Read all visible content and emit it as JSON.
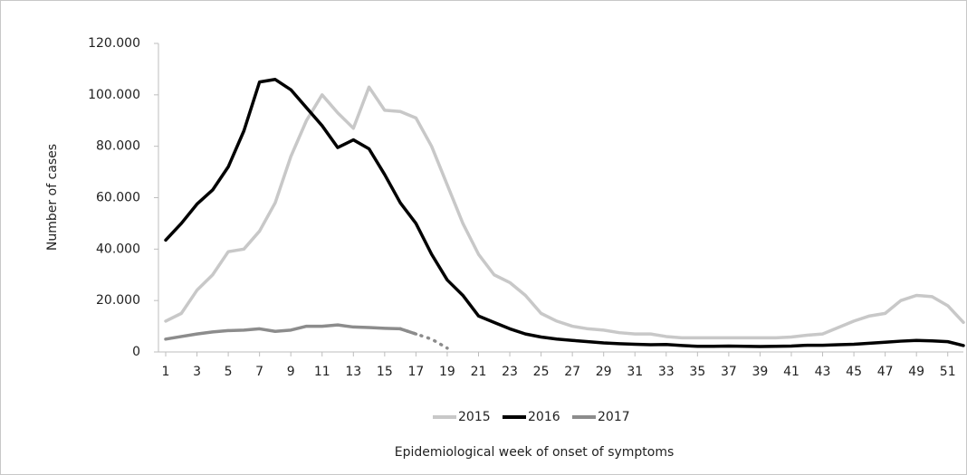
{
  "chart_data": {
    "type": "line",
    "y_label": "Number of cases",
    "x_label": "Epidemiological week of onset of symptoms",
    "x": [
      1,
      2,
      3,
      4,
      5,
      6,
      7,
      8,
      9,
      10,
      11,
      12,
      13,
      14,
      15,
      16,
      17,
      18,
      19,
      20,
      21,
      22,
      23,
      24,
      25,
      26,
      27,
      28,
      29,
      30,
      31,
      32,
      33,
      34,
      35,
      36,
      37,
      38,
      39,
      40,
      41,
      42,
      43,
      44,
      45,
      46,
      47,
      48,
      49,
      50,
      51,
      52
    ],
    "xlim": [
      1,
      52
    ],
    "xticks": [
      1,
      3,
      5,
      7,
      9,
      11,
      13,
      15,
      17,
      19,
      21,
      23,
      25,
      27,
      29,
      31,
      33,
      35,
      37,
      39,
      41,
      43,
      45,
      47,
      49,
      51
    ],
    "ylim": [
      0,
      120000
    ],
    "yticks": [
      0,
      {
        "value": 20000,
        "label": "20.000"
      },
      {
        "value": 40000,
        "label": "40.000"
      },
      {
        "value": 60000,
        "label": "60.000"
      },
      {
        "value": 80000,
        "label": "80.000"
      },
      {
        "value": 100000,
        "label": "100.000"
      },
      {
        "value": 120000,
        "label": "120.000"
      }
    ],
    "grid": false,
    "legend": "bottom",
    "series": [
      {
        "name": "2015",
        "color": "#c8c8c8",
        "values": [
          12000,
          15000,
          24000,
          30000,
          39000,
          40000,
          47000,
          58000,
          76000,
          90000,
          100000,
          93000,
          87000,
          103000,
          94000,
          93500,
          91000,
          80000,
          65000,
          50000,
          38000,
          30000,
          27000,
          22000,
          15000,
          12000,
          10000,
          9000,
          8500,
          7500,
          7000,
          7000,
          6000,
          5500,
          5500,
          5500,
          5500,
          5500,
          5500,
          5500,
          5800,
          6500,
          7000,
          9500,
          12000,
          14000,
          15000,
          20000,
          22000,
          21500,
          18000,
          11500
        ]
      },
      {
        "name": "2016",
        "color": "#000000",
        "values": [
          43500,
          50000,
          57500,
          63000,
          72000,
          86000,
          105000,
          106000,
          102000,
          95000,
          88000,
          79500,
          82500,
          79000,
          69000,
          58000,
          50000,
          38000,
          28000,
          22000,
          14000,
          11500,
          9000,
          7000,
          5800,
          5000,
          4500,
          4000,
          3500,
          3200,
          3000,
          2800,
          2900,
          2500,
          2200,
          2200,
          2300,
          2200,
          2100,
          2200,
          2300,
          2600,
          2600,
          2800,
          3000,
          3400,
          3800,
          4200,
          4500,
          4300,
          4000,
          2500
        ]
      },
      {
        "name": "2017",
        "color": "#8c8c8c",
        "dotted_from": 17,
        "values": [
          5000,
          6000,
          7000,
          7800,
          8300,
          8500,
          9000,
          8000,
          8500,
          10000,
          10000,
          10500,
          9700,
          9500,
          9200,
          9000,
          7000,
          5000,
          1500,
          null,
          null,
          null,
          null,
          null,
          null,
          null,
          null,
          null,
          null,
          null,
          null,
          null,
          null,
          null,
          null,
          null,
          null,
          null,
          null,
          null,
          null,
          null,
          null,
          null,
          null,
          null,
          null,
          null,
          null,
          null,
          null,
          null
        ]
      }
    ]
  }
}
